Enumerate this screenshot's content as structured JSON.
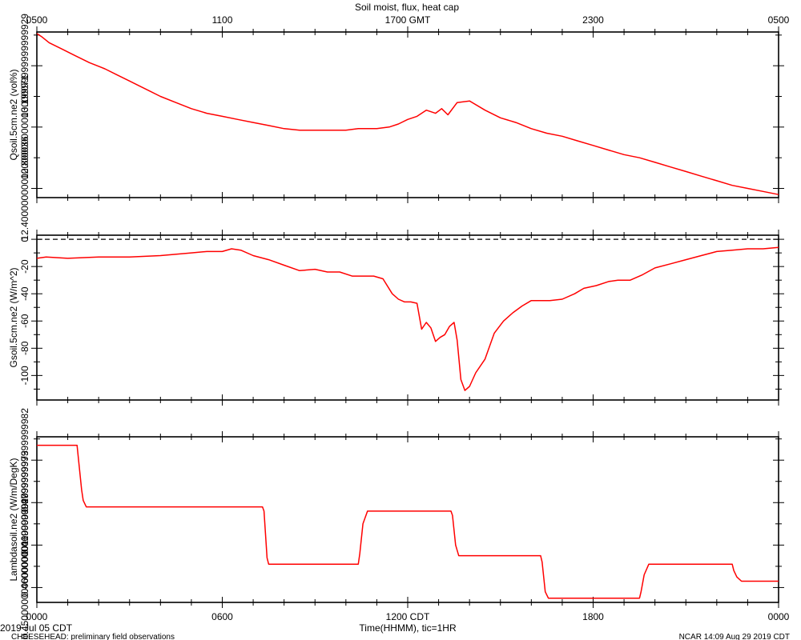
{
  "header": {
    "title": "Soil moist, flux, heat cap",
    "gmt_ticks": [
      "0500",
      "1100",
      "1700 GMT",
      "2300",
      "0500"
    ]
  },
  "footer": {
    "date": "2019 Jul 05 CDT",
    "project": "CHEESEHEAD: preliminary field observations",
    "xlabel": "Time(HHMM), tic=1HR",
    "stamp": "NCAR 14:09 Aug 29 2019 CDT",
    "cdt_ticks": [
      "0000",
      "0600",
      "1200 CDT",
      "1800",
      "0000"
    ]
  },
  "colors": {
    "series": "#ff0000",
    "axis": "#000000",
    "zero_line": "#000000"
  },
  "chart_data": [
    {
      "type": "line",
      "ylabel": "Qsoil.5cm.ne2 (vol%)",
      "ylim": [
        12.34,
        13.42
      ],
      "yticks": [
        12.4,
        12.8,
        13.2
      ],
      "xlim": [
        0,
        24
      ],
      "grid": false,
      "series": [
        {
          "x": [
            0,
            0.15,
            0.4,
            0.8,
            1.2,
            1.7,
            2.2,
            2.6,
            3.0,
            3.3,
            3.6,
            4.0,
            4.5,
            5.0,
            5.5,
            6.0,
            6.5,
            7.0,
            7.5,
            8.0,
            8.5,
            9.0,
            9.5,
            10.0,
            10.4,
            11.0,
            11.4,
            11.7,
            12.0,
            12.3,
            12.6,
            12.9,
            13.1,
            13.3,
            13.6,
            14.0,
            14.5,
            15.0,
            15.5,
            16.0,
            16.5,
            17.0,
            17.5,
            18.0,
            18.5,
            19.0,
            19.5,
            20.0,
            20.5,
            21.0,
            21.5,
            22.0,
            22.5,
            23.0,
            23.5,
            24.0
          ],
          "y": [
            13.41,
            13.39,
            13.35,
            13.31,
            13.27,
            13.22,
            13.18,
            13.14,
            13.1,
            13.07,
            13.04,
            13.0,
            12.96,
            12.92,
            12.89,
            12.87,
            12.85,
            12.83,
            12.81,
            12.79,
            12.78,
            12.78,
            12.78,
            12.78,
            12.79,
            12.79,
            12.8,
            12.82,
            12.85,
            12.87,
            12.91,
            12.89,
            12.92,
            12.88,
            12.96,
            12.97,
            12.91,
            12.86,
            12.83,
            12.79,
            12.76,
            12.74,
            12.71,
            12.68,
            12.65,
            12.62,
            12.6,
            12.57,
            12.54,
            12.51,
            12.48,
            12.45,
            12.42,
            12.4,
            12.38,
            12.36
          ]
        }
      ]
    },
    {
      "type": "line",
      "ylabel": "Gsoil.5cm.ne2 (W/m^2)",
      "ylim": [
        -118,
        3
      ],
      "yticks": [
        -100,
        -80,
        -60,
        -40,
        -20,
        0
      ],
      "xlim": [
        0,
        24
      ],
      "zero_line": true,
      "grid": false,
      "series": [
        {
          "x": [
            0,
            0.3,
            1.0,
            2.0,
            3.0,
            4.0,
            5.0,
            5.5,
            6.0,
            6.3,
            6.6,
            7.0,
            7.5,
            8.0,
            8.5,
            9.0,
            9.4,
            9.8,
            10.2,
            10.6,
            10.9,
            11.2,
            11.5,
            11.7,
            11.9,
            12.1,
            12.3,
            12.45,
            12.6,
            12.75,
            12.9,
            13.05,
            13.2,
            13.35,
            13.5,
            13.6,
            13.72,
            13.85,
            14.0,
            14.2,
            14.5,
            14.8,
            15.1,
            15.4,
            15.7,
            16.0,
            16.3,
            16.6,
            17.0,
            17.4,
            17.7,
            18.1,
            18.5,
            18.8,
            19.2,
            19.6,
            20.0,
            20.5,
            21.0,
            21.5,
            22.0,
            22.5,
            23.0,
            23.5,
            24.0
          ],
          "y": [
            -14,
            -13,
            -14,
            -13,
            -13,
            -12,
            -10,
            -9,
            -9,
            -7,
            -8,
            -12,
            -15,
            -19,
            -23,
            -22,
            -24,
            -24,
            -27,
            -27,
            -27,
            -29,
            -40,
            -44,
            -46,
            -46,
            -47,
            -66,
            -61,
            -65,
            -75,
            -72,
            -70,
            -64,
            -61,
            -74,
            -103,
            -111,
            -108,
            -98,
            -88,
            -69,
            -60,
            -54,
            -49,
            -45,
            -45,
            -45,
            -44,
            -40,
            -36,
            -34,
            -31,
            -30,
            -30,
            -26,
            -21,
            -18,
            -15,
            -12,
            -9,
            -8,
            -7,
            -7,
            -6
          ]
        }
      ]
    },
    {
      "type": "line",
      "ylabel": "Lambdasoil.ne2 (W/m/DegK)",
      "ylim": [
        0.4465,
        0.4855
      ],
      "yticks": [
        0.45,
        0.46,
        0.47,
        0.48
      ],
      "xlim": [
        0,
        24
      ],
      "grid": false,
      "series": [
        {
          "x": [
            0,
            1.3,
            1.35,
            1.45,
            1.5,
            1.6,
            7.3,
            7.35,
            7.45,
            7.5,
            10.4,
            10.45,
            10.55,
            10.7,
            13.4,
            13.45,
            13.55,
            13.65,
            16.3,
            16.35,
            16.45,
            16.55,
            19.5,
            19.55,
            19.65,
            19.8,
            22.5,
            22.55,
            22.65,
            22.8,
            24.0
          ],
          "y": [
            0.4835,
            0.4835,
            0.48,
            0.473,
            0.4705,
            0.469,
            0.469,
            0.468,
            0.457,
            0.4555,
            0.4555,
            0.458,
            0.465,
            0.468,
            0.468,
            0.467,
            0.46,
            0.4575,
            0.4575,
            0.456,
            0.449,
            0.4475,
            0.4475,
            0.449,
            0.453,
            0.4555,
            0.4555,
            0.454,
            0.4525,
            0.4515,
            0.4515
          ]
        }
      ]
    }
  ]
}
